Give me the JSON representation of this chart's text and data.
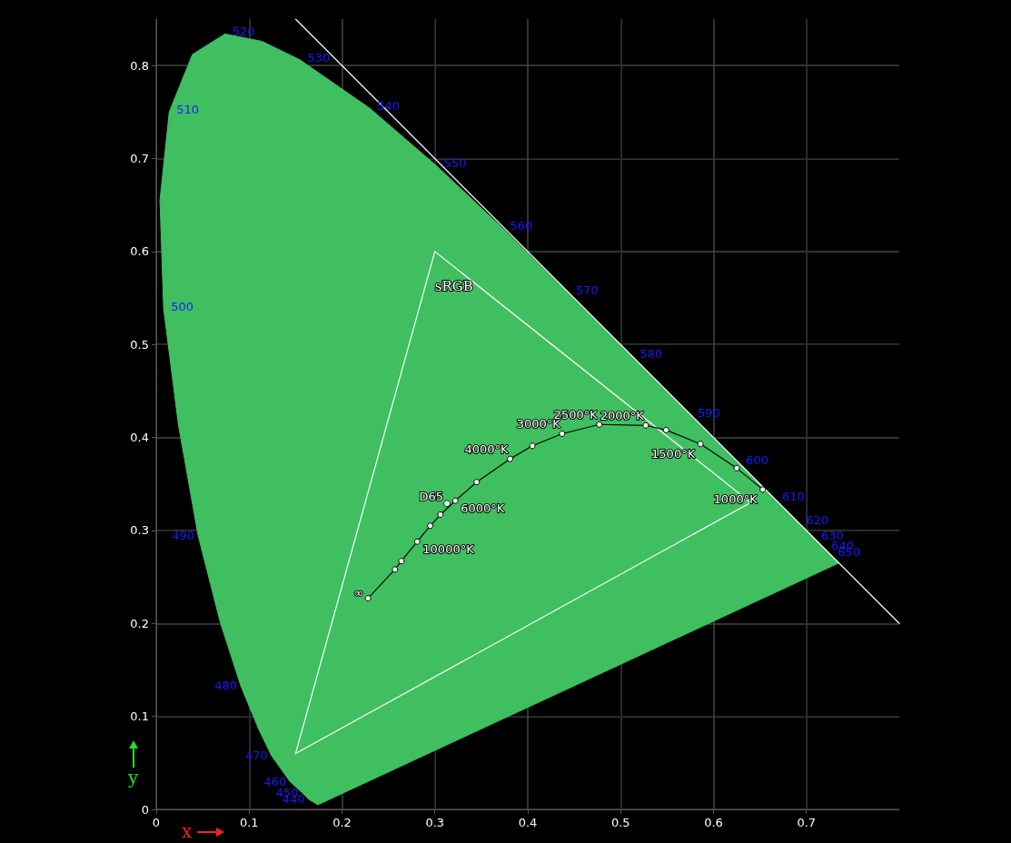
{
  "chart_data": {
    "type": "line",
    "xlabel": "x",
    "ylabel": "y",
    "xlim": [
      0,
      0.8
    ],
    "ylim": [
      0,
      0.85
    ],
    "xticks": [
      0,
      0.1,
      0.2,
      0.3,
      0.4,
      0.5,
      0.6,
      0.7
    ],
    "yticks": [
      0,
      0.1,
      0.2,
      0.3,
      0.4,
      0.5,
      0.6,
      0.7,
      0.8
    ],
    "grid": true,
    "legend": false,
    "series": [
      {
        "type": "area",
        "color": "#3fbf5f",
        "x": [
          0.174,
          0.164,
          0.157,
          0.144,
          0.124,
          0.11,
          0.091,
          0.069,
          0.045,
          0.024,
          0.008,
          0.004,
          0.014,
          0.039,
          0.074,
          0.114,
          0.155,
          0.23,
          0.302,
          0.373,
          0.444,
          0.513,
          0.575,
          0.627,
          0.666,
          0.692,
          0.708,
          0.719,
          0.726,
          0.73,
          0.735
        ],
        "values": [
          0.005,
          0.011,
          0.018,
          0.03,
          0.058,
          0.087,
          0.133,
          0.201,
          0.295,
          0.413,
          0.538,
          0.655,
          0.75,
          0.812,
          0.834,
          0.826,
          0.806,
          0.754,
          0.692,
          0.625,
          0.555,
          0.487,
          0.424,
          0.373,
          0.334,
          0.308,
          0.292,
          0.281,
          0.274,
          0.27,
          0.265
        ]
      },
      {
        "name": "sRGB",
        "color": "#ffffff",
        "marker": "none",
        "x": [
          0.3,
          0.64
        ],
        "values": [
          0.6,
          0.33
        ]
      },
      {
        "color": "#ffffff",
        "marker": "none",
        "x": [
          0.15,
          0.3
        ],
        "values": [
          0.06,
          0.6
        ]
      },
      {
        "color": "#ffffff",
        "marker": "none",
        "x": [
          0.15,
          0.64
        ],
        "values": [
          0.06,
          0.33
        ]
      },
      {
        "color": "#ffffff",
        "marker": "none",
        "x": [
          0.15,
          0.8
        ],
        "values": [
          0.85,
          0.2
        ]
      },
      {
        "color": "#000000",
        "marker": "circle",
        "x": [
          0.653,
          0.625,
          0.586,
          0.549,
          0.527,
          0.477,
          0.437,
          0.405,
          0.381,
          0.345,
          0.322,
          0.306,
          0.295,
          0.281,
          0.264,
          0.257,
          0.228
        ],
        "values": [
          0.344,
          0.367,
          0.393,
          0.408,
          0.413,
          0.414,
          0.404,
          0.391,
          0.377,
          0.352,
          0.332,
          0.317,
          0.305,
          0.288,
          0.267,
          0.258,
          0.227
        ]
      },
      {
        "type": "scatter",
        "color": "#ffffff",
        "marker": "circle",
        "x": [
          0.313
        ],
        "values": [
          0.329
        ]
      }
    ],
    "annotations": [
      {
        "text": "440",
        "x": 0.164,
        "y": 0.011
      },
      {
        "text": "450",
        "x": 0.157,
        "y": 0.018
      },
      {
        "text": "460",
        "x": 0.144,
        "y": 0.03
      },
      {
        "text": "470",
        "x": 0.124,
        "y": 0.058
      },
      {
        "text": "480",
        "x": 0.091,
        "y": 0.133
      },
      {
        "text": "490",
        "x": 0.045,
        "y": 0.295
      },
      {
        "text": "500",
        "x": 0.008,
        "y": 0.538
      },
      {
        "text": "510",
        "x": 0.014,
        "y": 0.75
      },
      {
        "text": "520",
        "x": 0.074,
        "y": 0.834
      },
      {
        "text": "530",
        "x": 0.155,
        "y": 0.806
      },
      {
        "text": "540",
        "x": 0.23,
        "y": 0.754
      },
      {
        "text": "550",
        "x": 0.302,
        "y": 0.692
      },
      {
        "text": "560",
        "x": 0.373,
        "y": 0.625
      },
      {
        "text": "570",
        "x": 0.444,
        "y": 0.555
      },
      {
        "text": "580",
        "x": 0.513,
        "y": 0.487
      },
      {
        "text": "590",
        "x": 0.575,
        "y": 0.424
      },
      {
        "text": "600",
        "x": 0.627,
        "y": 0.373
      },
      {
        "text": "610",
        "x": 0.666,
        "y": 0.334
      },
      {
        "text": "620",
        "x": 0.692,
        "y": 0.308
      },
      {
        "text": "630",
        "x": 0.708,
        "y": 0.292
      },
      {
        "text": "640",
        "x": 0.719,
        "y": 0.281
      },
      {
        "text": "650",
        "x": 0.726,
        "y": 0.274
      },
      {
        "text": "1000°K",
        "x": 0.653,
        "y": 0.344
      },
      {
        "text": "1500°K",
        "x": 0.586,
        "y": 0.393
      },
      {
        "text": "2000°K",
        "x": 0.527,
        "y": 0.413
      },
      {
        "text": "2500°K",
        "x": 0.477,
        "y": 0.414
      },
      {
        "text": "3000°K",
        "x": 0.437,
        "y": 0.404
      },
      {
        "text": "4000°K",
        "x": 0.381,
        "y": 0.377
      },
      {
        "text": "6000°K",
        "x": 0.322,
        "y": 0.332
      },
      {
        "text": "10000°K",
        "x": 0.281,
        "y": 0.288
      },
      {
        "text": "∞",
        "x": 0.228,
        "y": 0.227
      },
      {
        "text": "D65",
        "x": 0.313,
        "y": 0.329
      }
    ]
  }
}
